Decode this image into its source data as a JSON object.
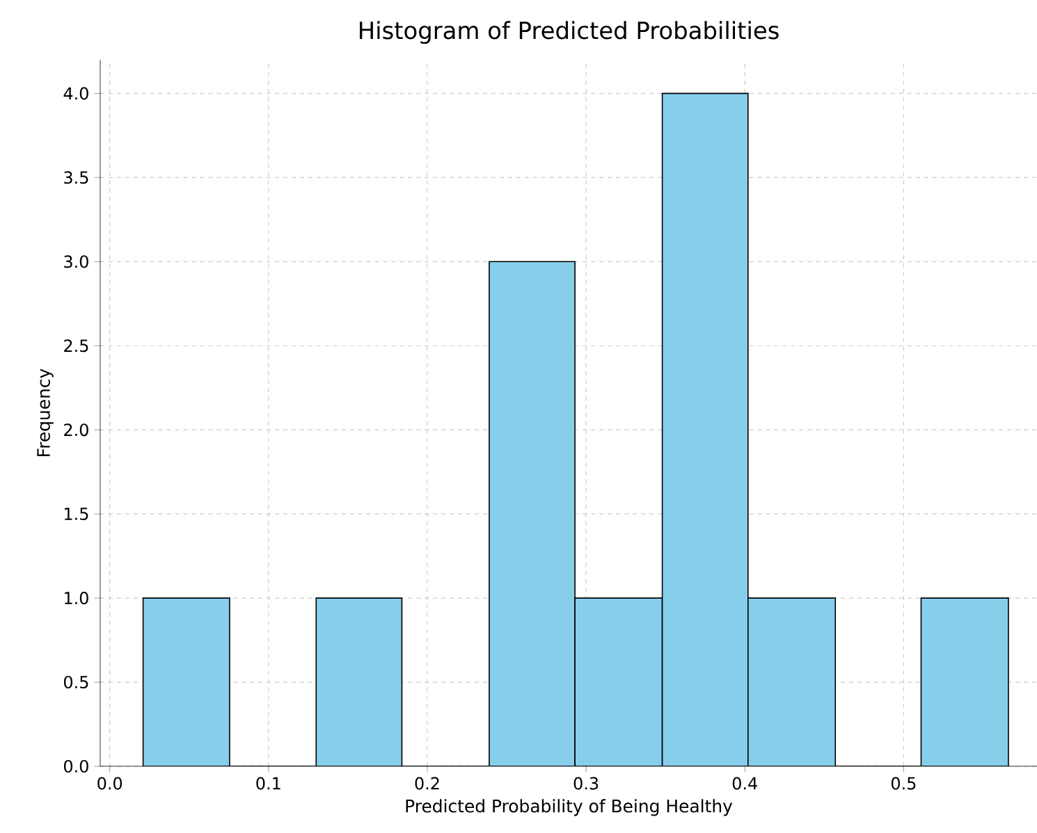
{
  "chart_data": {
    "type": "histogram",
    "title": "Histogram of Predicted Probabilities",
    "xlabel": "Predicted Probability of Being Healthy",
    "ylabel": "Frequency",
    "bins": [
      0.021,
      0.0755,
      0.13,
      0.184,
      0.239,
      0.293,
      0.348,
      0.402,
      0.457,
      0.511,
      0.566
    ],
    "values": [
      1,
      0,
      1,
      0,
      3,
      1,
      4,
      1,
      0,
      1
    ],
    "color": "#87ceeb",
    "xlim": [
      -0.006,
      0.584
    ],
    "ylim": [
      0,
      4.2
    ],
    "xticks": [
      {
        "value": 0,
        "label": "0.0"
      },
      0.1,
      0.2,
      0.3,
      0.4,
      0.5
    ],
    "yticks": [
      {
        "value": 0,
        "label": "0.0"
      },
      0.5,
      {
        "value": 1,
        "label": "1.0"
      },
      1.5,
      {
        "value": 2,
        "label": "2.0"
      },
      2.5,
      {
        "value": 3,
        "label": "3.0"
      },
      3.5,
      {
        "value": 4,
        "label": "4.0"
      }
    ],
    "grid": true
  }
}
